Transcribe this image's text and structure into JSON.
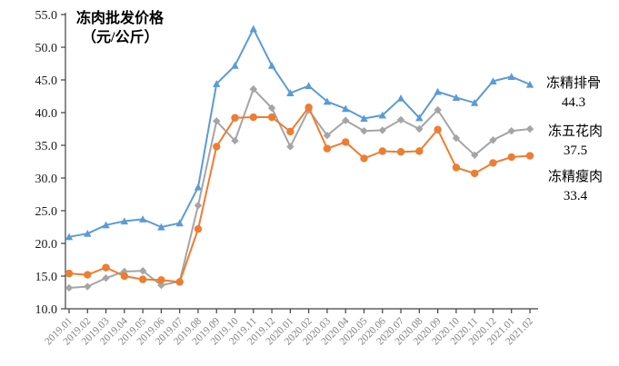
{
  "title": {
    "line1": "冻肉批发价格",
    "line2": "（元/公斤）"
  },
  "colors": {
    "ribs_blue": "#5B9BD5",
    "belly_gray": "#A5A5A5",
    "lean_orange": "#ED7D31",
    "axis_line": "#404040",
    "ytick_text": "#1a1a1a",
    "xtick_text": "#808080",
    "background": "#ffffff"
  },
  "chart_data": {
    "type": "line",
    "title": "冻肉批发价格（元/公斤）",
    "xlabel": "",
    "ylabel": "元/公斤",
    "grid": false,
    "legend_position": "right-of-line-end",
    "ylim": [
      10.0,
      55.0
    ],
    "ytick_step": 5.0,
    "ytick_labels": [
      "55.0",
      "50.0",
      "45.0",
      "40.0",
      "35.0",
      "30.0",
      "25.0",
      "20.0",
      "15.0",
      "10.0"
    ],
    "x": [
      "2019.01",
      "2019.02",
      "2019.03",
      "2019.04",
      "2019.05",
      "2019.06",
      "2019.07",
      "2019.08",
      "2019.09",
      "2019.10",
      "2019.11",
      "2019.12",
      "2020.01",
      "2020.02",
      "2020.03",
      "2020.04",
      "2020.05",
      "2020.06",
      "2020.07",
      "2020.08",
      "2020.09",
      "2020.10",
      "2020.11",
      "2020.12",
      "2021.01",
      "2021.02"
    ],
    "series": [
      {
        "name": "冻精排骨",
        "marker": "triangle",
        "color": "#5B9BD5",
        "end_value": 44.3,
        "values": [
          21.0,
          21.5,
          22.8,
          23.4,
          23.7,
          22.5,
          23.1,
          28.6,
          44.4,
          47.2,
          52.8,
          47.2,
          43.0,
          44.1,
          41.7,
          40.6,
          39.1,
          39.6,
          42.2,
          39.2,
          43.2,
          42.3,
          41.5,
          44.8,
          45.5,
          44.3
        ]
      },
      {
        "name": "冻五花肉",
        "marker": "diamond",
        "color": "#A5A5A5",
        "end_value": 37.5,
        "values": [
          13.2,
          13.4,
          14.7,
          15.7,
          15.8,
          13.6,
          14.2,
          25.8,
          38.7,
          35.7,
          43.6,
          40.7,
          34.8,
          40.4,
          36.5,
          38.8,
          37.2,
          37.3,
          38.9,
          37.5,
          40.4,
          36.1,
          33.5,
          35.8,
          37.2,
          37.5
        ]
      },
      {
        "name": "冻精瘦肉",
        "marker": "circle",
        "color": "#ED7D31",
        "end_value": 33.4,
        "values": [
          15.4,
          15.2,
          16.3,
          15.0,
          14.5,
          14.4,
          14.1,
          22.2,
          34.8,
          39.2,
          39.3,
          39.3,
          37.1,
          40.8,
          34.5,
          35.5,
          33.0,
          34.1,
          34.0,
          34.1,
          37.4,
          31.6,
          30.7,
          32.3,
          33.2,
          33.4
        ]
      }
    ]
  },
  "end_labels": [
    {
      "name": "冻精排骨",
      "value": "44.3"
    },
    {
      "name": "冻五花肉",
      "value": "37.5"
    },
    {
      "name": "冻精瘦肉",
      "value": "33.4"
    }
  ]
}
